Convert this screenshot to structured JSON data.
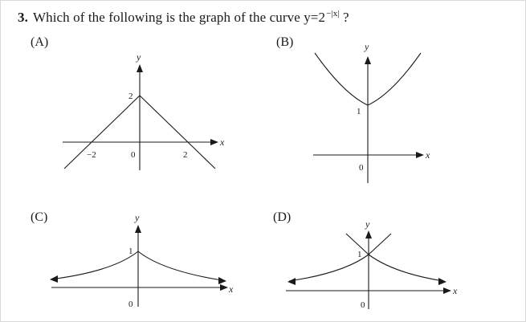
{
  "question": {
    "number": "3.",
    "text": "Which of the following is the graph of the curve y=2",
    "exponent": "−|x|",
    "end": " ?"
  },
  "options": [
    {
      "label": "(A)",
      "labels": {
        "y": "y",
        "x": "x",
        "origin": "0",
        "tick_y": "2",
        "tick_xneg": "−2",
        "tick_xpos": "2"
      }
    },
    {
      "label": "(B)",
      "labels": {
        "y": "y",
        "x": "x",
        "origin": "0",
        "tick_y": "1"
      }
    },
    {
      "label": "(C)",
      "labels": {
        "y": "y",
        "x": "x",
        "origin": "0",
        "tick_y": "1"
      }
    },
    {
      "label": "(D)",
      "labels": {
        "y": "y",
        "x": "x",
        "origin": "0",
        "tick_y": "1"
      }
    }
  ]
}
